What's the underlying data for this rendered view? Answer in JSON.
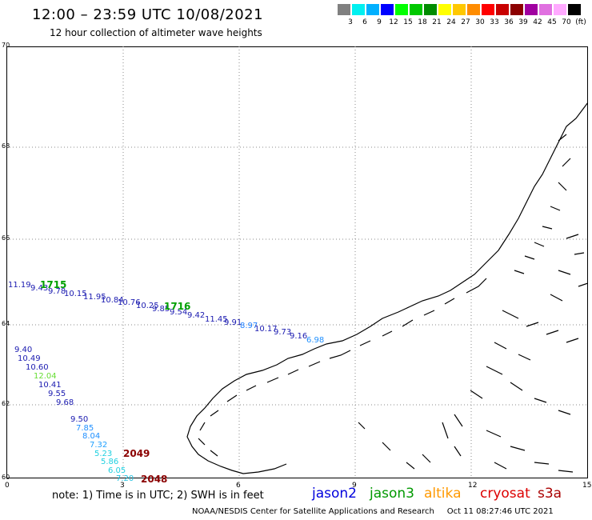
{
  "header": {
    "title": "12:00 – 23:59 UTC 10/08/2021",
    "subtitle": "12 hour collection of altimeter wave heights"
  },
  "color_scale": {
    "swatches": [
      "#808080",
      "#00f0f0",
      "#00b0ff",
      "#0000ff",
      "#00ff00",
      "#00c800",
      "#008c00",
      "#ffff00",
      "#ffc800",
      "#ff8c00",
      "#ff0000",
      "#c80000",
      "#8c0000",
      "#a000a0",
      "#e070e0",
      "#ffaaff",
      "#000000"
    ],
    "labels": [
      "3",
      "6",
      "9",
      "12",
      "15",
      "18",
      "21",
      "24",
      "27",
      "30",
      "33",
      "36",
      "39",
      "42",
      "45",
      "70",
      "(ft)"
    ]
  },
  "axes": {
    "lat_labels": [
      "70",
      "68",
      "66",
      "64",
      "62",
      "60"
    ],
    "lon_labels": [
      "0",
      "3",
      "6",
      "9",
      "12",
      "15"
    ]
  },
  "observations": [
    {
      "v": "11.19",
      "c": "#1a1ab0"
    },
    {
      "v": "9.43",
      "c": "#1a1ab0"
    },
    {
      "v": "9.78",
      "c": "#1a1ab0"
    },
    {
      "v": "10.15",
      "c": "#1a1ab0"
    },
    {
      "v": "11.95",
      "c": "#1a1ab0"
    },
    {
      "v": "10.84",
      "c": "#1a1ab0"
    },
    {
      "v": "10.76",
      "c": "#1a1ab0"
    },
    {
      "v": "10.25",
      "c": "#1a1ab0"
    },
    {
      "v": "9.85",
      "c": "#1a1ab0"
    },
    {
      "v": "9.54",
      "c": "#1a1ab0"
    },
    {
      "v": "9.42",
      "c": "#1a1ab0"
    },
    {
      "v": "11.45",
      "c": "#1a1ab0"
    },
    {
      "v": "9.91",
      "c": "#1a1ab0"
    },
    {
      "v": "8.97",
      "c": "#2080ff"
    },
    {
      "v": "10.17",
      "c": "#1a1ab0"
    },
    {
      "v": "9.73",
      "c": "#1a1ab0"
    },
    {
      "v": "9.16",
      "c": "#1a1ab0"
    },
    {
      "v": "6.98",
      "c": "#2090ff"
    },
    {
      "v": "9.40",
      "c": "#1a1ab0"
    },
    {
      "v": "10.49",
      "c": "#1a1ab0"
    },
    {
      "v": "10.60",
      "c": "#1a1ab0"
    },
    {
      "v": "12.04",
      "c": "#66dd33"
    },
    {
      "v": "10.41",
      "c": "#1a1ab0"
    },
    {
      "v": "9.55",
      "c": "#1a1ab0"
    },
    {
      "v": "9.68",
      "c": "#1a1ab0"
    },
    {
      "v": "9.50",
      "c": "#1a1ab0"
    },
    {
      "v": "7.85",
      "c": "#2090ff"
    },
    {
      "v": "8.04",
      "c": "#2090ff"
    },
    {
      "v": "7.32",
      "c": "#20a0ff"
    },
    {
      "v": "5.23",
      "c": "#20d0e0"
    },
    {
      "v": "5.86",
      "c": "#20d0e0"
    },
    {
      "v": "6.05",
      "c": "#20d0e0"
    },
    {
      "v": "7.20",
      "c": "#20c0e0"
    }
  ],
  "pass_labels": [
    {
      "v": "1715",
      "c": "#00a000"
    },
    {
      "v": "1716",
      "c": "#00a000"
    },
    {
      "v": "2049",
      "c": "#8b0000"
    },
    {
      "v": "2048",
      "c": "#8b0000"
    }
  ],
  "footer": {
    "note": "note:  1) Time is in UTC;  2) SWH is in feet",
    "legend": [
      {
        "name": "jason2",
        "color": "#0000dd"
      },
      {
        "name": "jason3",
        "color": "#009900"
      },
      {
        "name": "altika",
        "color": "#ff9900"
      },
      {
        "name": "cryosat",
        "color": "#dd0000"
      },
      {
        "name": "s3a",
        "color": "#aa0000"
      }
    ],
    "credit": "NOAA/NESDIS Center for Satellite Applications and Research",
    "timestamp": "Oct 11 08:27:46 UTC 2021"
  }
}
